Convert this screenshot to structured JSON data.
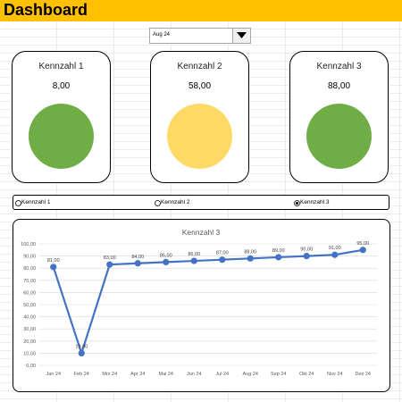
{
  "header": {
    "title": "Dashboard"
  },
  "dropdown": {
    "selected": "Aug 24"
  },
  "cards": [
    {
      "title": "Kennzahl 1",
      "value": "8,00",
      "color": "#70ad47"
    },
    {
      "title": "Kennzahl 2",
      "value": "58,00",
      "color": "#ffd966"
    },
    {
      "title": "Kennzahl 3",
      "value": "88,00",
      "color": "#70ad47"
    }
  ],
  "radio": {
    "options": [
      "Kennzahl 1",
      "Kennzahl 2",
      "Kennzahl 3"
    ],
    "selected_index": 2
  },
  "colors": {
    "accent": "#ffc000",
    "series": "#4472c4"
  },
  "chart_data": {
    "type": "line",
    "title": "Kennzahl 3",
    "categories": [
      "Jan 24",
      "Feb 24",
      "Mrz 24",
      "Apr 24",
      "Mai 24",
      "Jun 24",
      "Jul 24",
      "Aug 24",
      "Sep 24",
      "Okt 24",
      "Nov 24",
      "Dez 24"
    ],
    "values": [
      81,
      10,
      83,
      84,
      85,
      86,
      87,
      88,
      89,
      90,
      91,
      95
    ],
    "data_labels": [
      "81,00",
      "10,00",
      "83,00",
      "84,00",
      "85,00",
      "86,00",
      "87,00",
      "88,00",
      "89,00",
      "90,00",
      "91,00",
      "95,00"
    ],
    "y_ticks": [
      "0,00",
      "10,00",
      "20,00",
      "30,00",
      "40,00",
      "50,00",
      "60,00",
      "70,00",
      "80,00",
      "90,00",
      "100,00"
    ],
    "ylim": [
      0,
      100
    ],
    "grid": true
  }
}
